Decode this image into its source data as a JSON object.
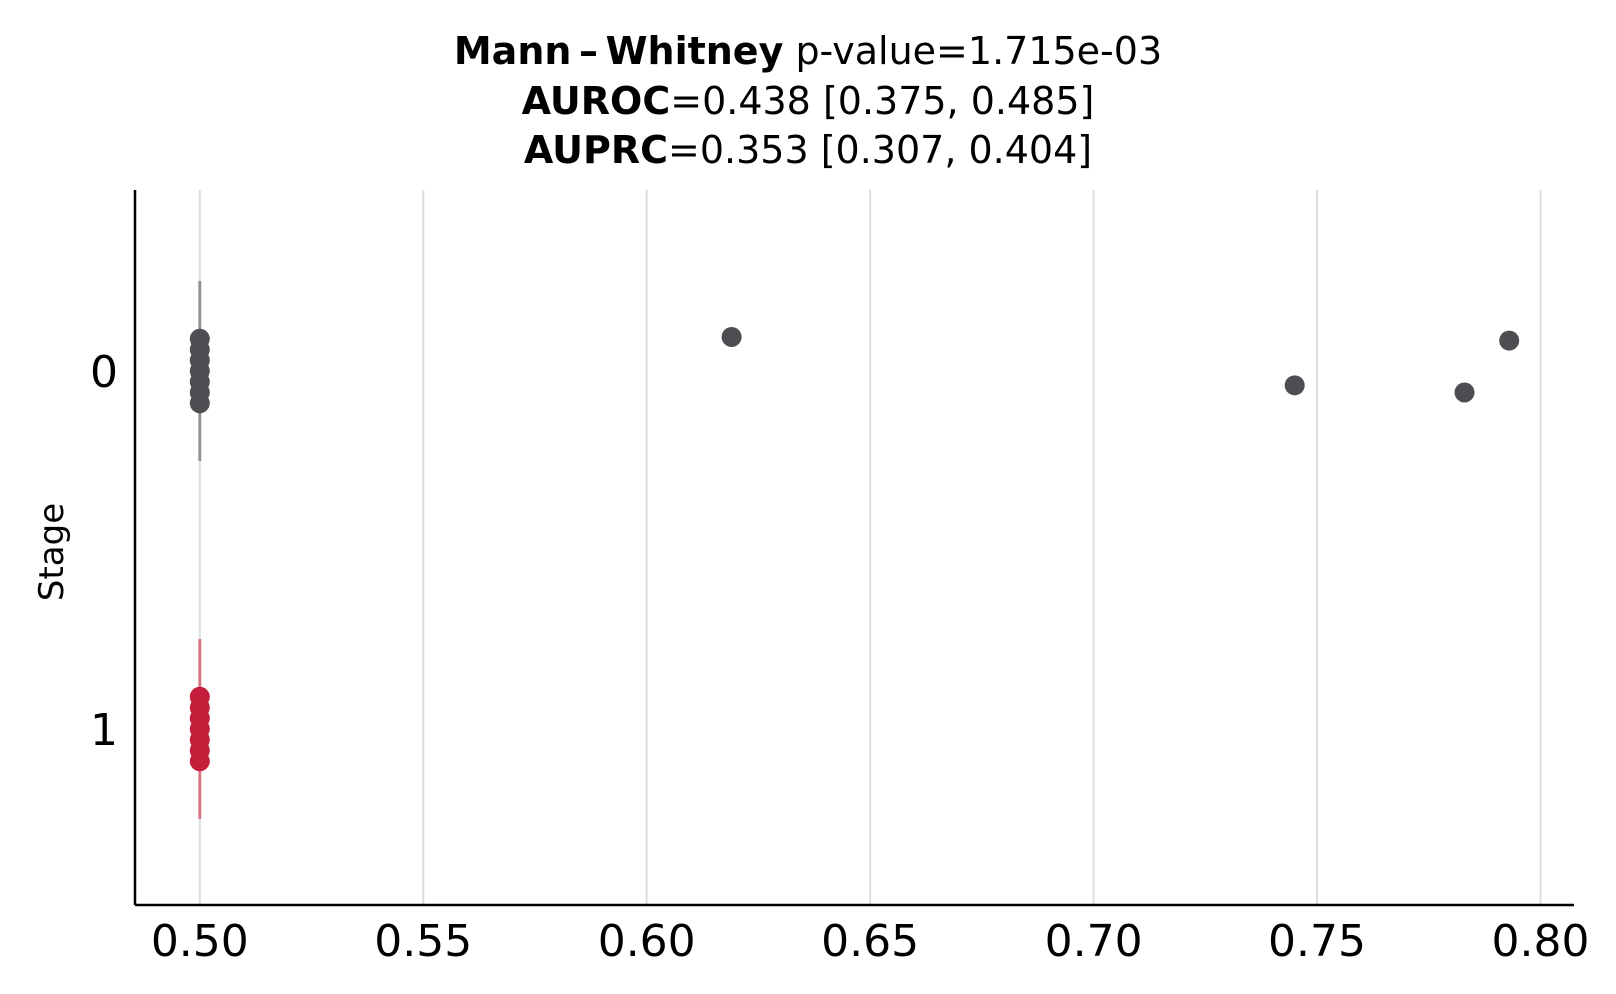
{
  "chart_data": {
    "type": "scatter",
    "title_lines": [
      {
        "bold": "Mann – Whitney",
        "rest": " p-value=1.715e-03"
      },
      {
        "bold": "AUROC",
        "rest": "=0.438 [0.375, 0.485]"
      },
      {
        "bold": "AUPRC",
        "rest": "=0.353 [0.307, 0.404]"
      }
    ],
    "xlabel": "",
    "ylabel": "Stage",
    "xlim": [
      0.4855,
      0.8075
    ],
    "x_ticks": [
      0.5,
      0.55,
      0.6,
      0.65,
      0.7,
      0.75,
      0.8
    ],
    "x_tick_labels": [
      "0.50",
      "0.55",
      "0.60",
      "0.65",
      "0.70",
      "0.75",
      "0.80"
    ],
    "categories": [
      "0",
      "1"
    ],
    "grid": "vertical",
    "colors": {
      "stage0": "#4d4d52",
      "stage1": "#c41e3a",
      "grid": "#dddddd"
    },
    "series": [
      {
        "category": "0",
        "color": "#4d4d52",
        "box_whisker_range": [
          0.5,
          0.5
        ],
        "points": [
          {
            "x": 0.5,
            "jitter": -0.09
          },
          {
            "x": 0.5,
            "jitter": -0.06
          },
          {
            "x": 0.5,
            "jitter": -0.03
          },
          {
            "x": 0.5,
            "jitter": 0.0
          },
          {
            "x": 0.5,
            "jitter": 0.03
          },
          {
            "x": 0.5,
            "jitter": 0.06
          },
          {
            "x": 0.5,
            "jitter": 0.09
          },
          {
            "x": 0.619,
            "jitter": -0.095
          },
          {
            "x": 0.745,
            "jitter": 0.04
          },
          {
            "x": 0.783,
            "jitter": 0.06
          },
          {
            "x": 0.793,
            "jitter": -0.085
          }
        ]
      },
      {
        "category": "1",
        "color": "#c41e3a",
        "box_whisker_range": [
          0.5,
          0.5
        ],
        "points": [
          {
            "x": 0.5,
            "jitter": -0.09
          },
          {
            "x": 0.5,
            "jitter": -0.06
          },
          {
            "x": 0.5,
            "jitter": -0.03
          },
          {
            "x": 0.5,
            "jitter": 0.0
          },
          {
            "x": 0.5,
            "jitter": 0.03
          },
          {
            "x": 0.5,
            "jitter": 0.06
          },
          {
            "x": 0.5,
            "jitter": 0.09
          }
        ]
      }
    ]
  }
}
